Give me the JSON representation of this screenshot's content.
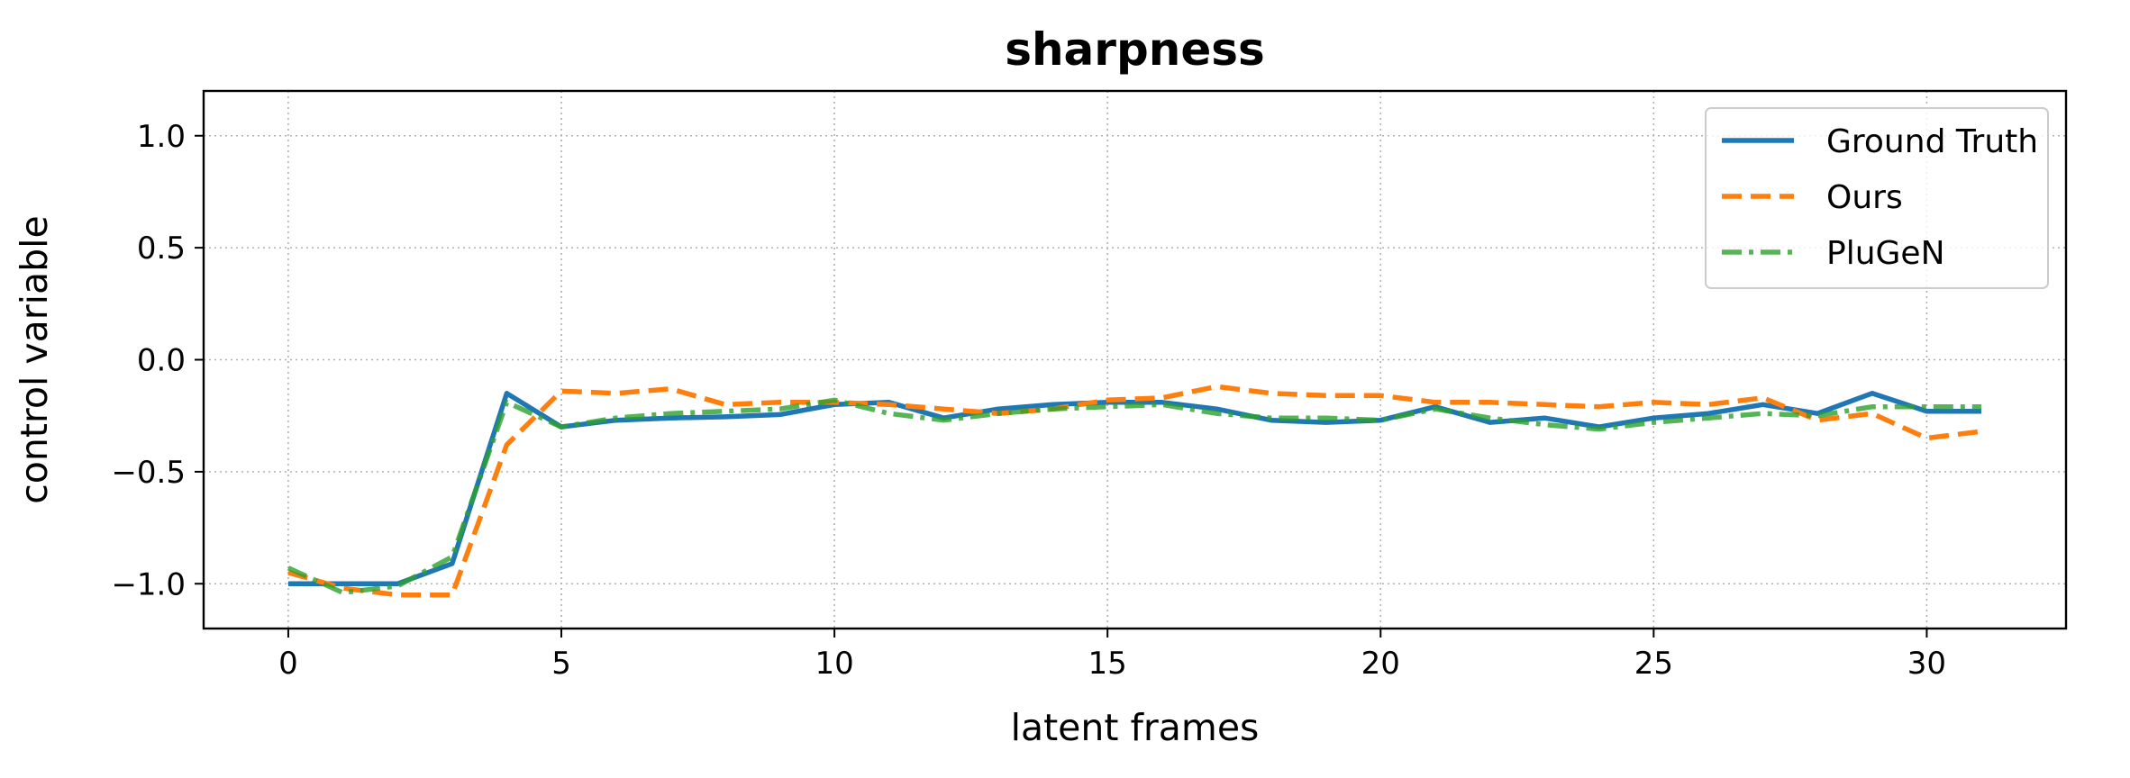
{
  "chart_data": {
    "type": "line",
    "title": "sharpness",
    "xlabel": "latent frames",
    "ylabel": "control variable",
    "xlim": [
      -1.55,
      32.55
    ],
    "ylim": [
      -1.2,
      1.2
    ],
    "xticks": [
      0,
      5,
      10,
      15,
      20,
      25,
      30
    ],
    "yticks": [
      1.0,
      0.5,
      0.0,
      -0.5,
      -1.0
    ],
    "ytick_labels": [
      "1.0",
      "0.5",
      "0.0",
      "−0.5",
      "−1.0"
    ],
    "grid": true,
    "legend_position": "top-right",
    "x": [
      0,
      1,
      2,
      3,
      4,
      5,
      6,
      7,
      8,
      9,
      10,
      11,
      12,
      13,
      14,
      15,
      16,
      17,
      18,
      19,
      20,
      21,
      22,
      23,
      24,
      25,
      26,
      27,
      28,
      29,
      30,
      31
    ],
    "series": [
      {
        "name": "Ground Truth",
        "color": "#1f77b4",
        "style": "solid",
        "values": [
          -1.0,
          -1.0,
          -1.0,
          -0.91,
          -0.15,
          -0.3,
          -0.27,
          -0.26,
          -0.255,
          -0.245,
          -0.2,
          -0.19,
          -0.26,
          -0.22,
          -0.2,
          -0.19,
          -0.19,
          -0.22,
          -0.27,
          -0.28,
          -0.27,
          -0.21,
          -0.28,
          -0.26,
          -0.3,
          -0.26,
          -0.24,
          -0.2,
          -0.24,
          -0.15,
          -0.23,
          -0.23
        ]
      },
      {
        "name": "Ours",
        "color": "#ff7f0e",
        "style": "dashed",
        "values": [
          -0.95,
          -1.02,
          -1.05,
          -1.05,
          -0.38,
          -0.14,
          -0.15,
          -0.13,
          -0.2,
          -0.19,
          -0.19,
          -0.2,
          -0.22,
          -0.24,
          -0.22,
          -0.18,
          -0.17,
          -0.12,
          -0.15,
          -0.16,
          -0.16,
          -0.19,
          -0.19,
          -0.2,
          -0.21,
          -0.19,
          -0.2,
          -0.17,
          -0.27,
          -0.24,
          -0.35,
          -0.32
        ]
      },
      {
        "name": "PluGeN",
        "color": "#2ca02c",
        "style": "dashdot",
        "values": [
          -0.93,
          -1.04,
          -1.01,
          -0.88,
          -0.19,
          -0.3,
          -0.26,
          -0.24,
          -0.23,
          -0.22,
          -0.18,
          -0.24,
          -0.27,
          -0.24,
          -0.22,
          -0.21,
          -0.2,
          -0.24,
          -0.26,
          -0.26,
          -0.27,
          -0.22,
          -0.26,
          -0.29,
          -0.31,
          -0.28,
          -0.26,
          -0.24,
          -0.25,
          -0.21,
          -0.21,
          -0.21
        ]
      }
    ]
  }
}
